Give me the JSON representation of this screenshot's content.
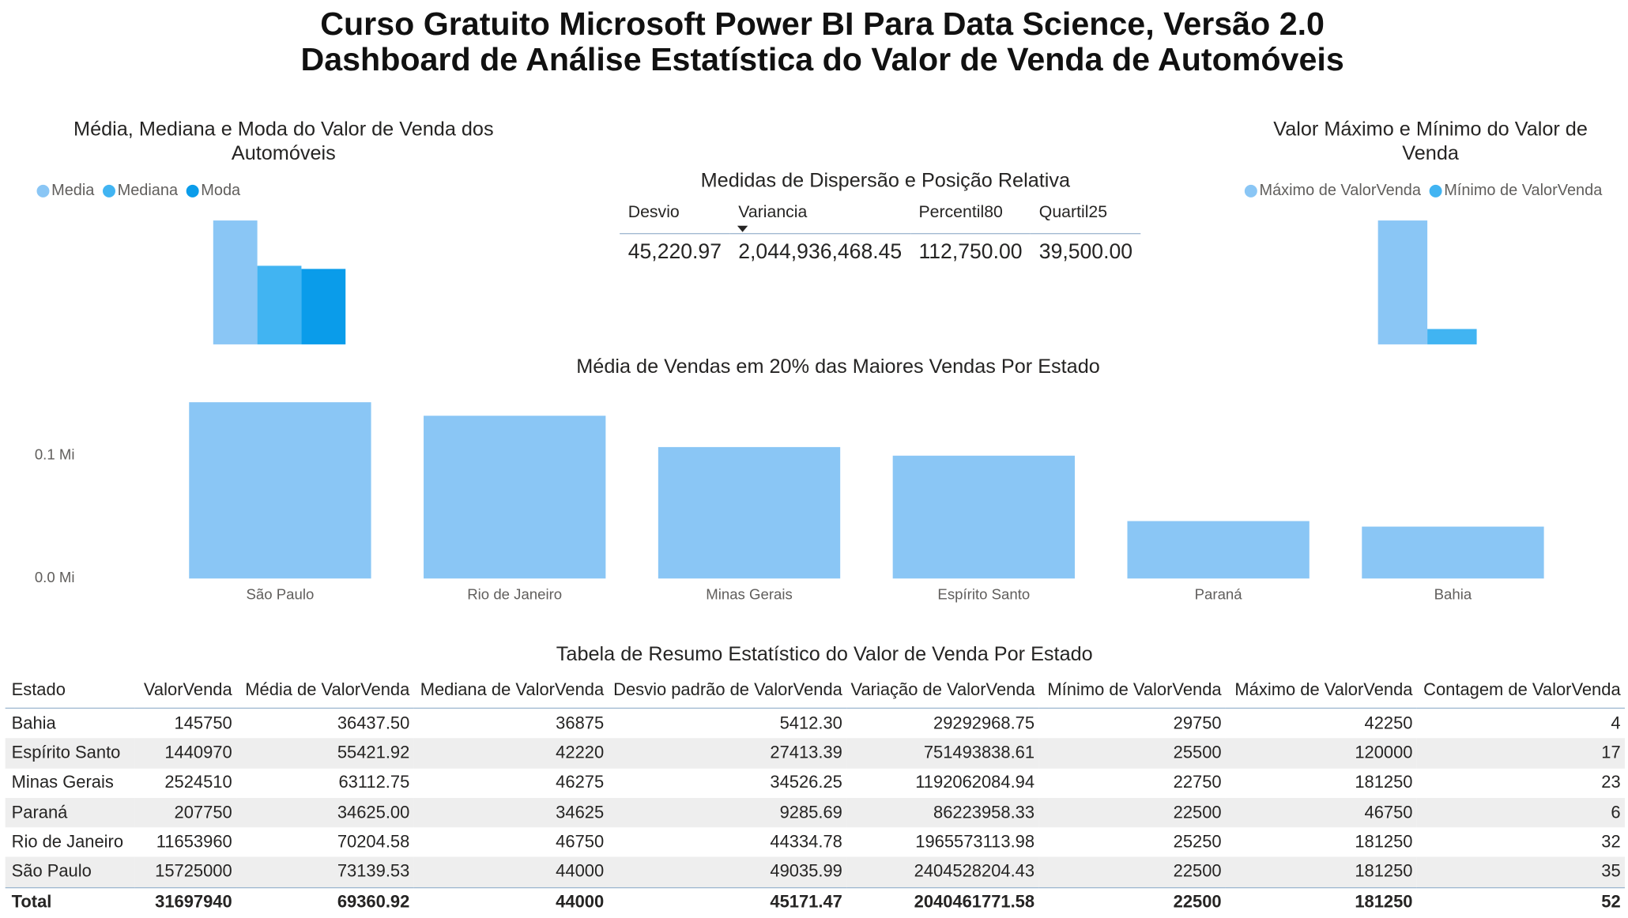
{
  "title": [
    "Curso Gratuito Microsoft Power BI Para Data Science, Versão 2.0",
    "Dashboard de Análise Estatística do Valor de Venda de Automóveis"
  ],
  "chart_data": [
    {
      "type": "bar",
      "title": "Média, Mediana e Moda do Valor de Venda dos Automóveis",
      "categories": [
        null
      ],
      "series": [
        {
          "name": "Media",
          "color": "#8AC6F5",
          "values": [
            69360.92
          ]
        },
        {
          "name": "Mediana",
          "color": "#41B4F2",
          "values": [
            44000
          ]
        },
        {
          "name": "Moda",
          "color": "#0A9CEA",
          "values": [
            42250
          ]
        }
      ]
    },
    {
      "type": "bar",
      "title": "Valor Máximo e Mínimo do Valor de Venda",
      "categories": [
        null
      ],
      "series": [
        {
          "name": "Máximo de ValorVenda",
          "color": "#8AC6F5",
          "values": [
            181250
          ]
        },
        {
          "name": "Mínimo de ValorVenda",
          "color": "#41B4F2",
          "values": [
            22500
          ]
        }
      ]
    },
    {
      "type": "bar",
      "title": "Média de Vendas em 20% das Maiores Vendas Por Estado",
      "categories": [
        "São Paulo",
        "Rio de Janeiro",
        "Minas Gerais",
        "Espírito Santo",
        "Paraná",
        "Bahia"
      ],
      "values": [
        143500,
        132500,
        107000,
        100000,
        46750,
        42250
      ],
      "color": "#8AC6F5",
      "ylim": [
        0,
        150000
      ],
      "yticks": [
        {
          "value": 0,
          "label": "0.0 Mi"
        },
        {
          "value": 100000,
          "label": "0.1 Mi"
        }
      ],
      "grid": false
    }
  ],
  "measures": {
    "title": "Medidas de Dispersão e Posição Relativa",
    "headers": [
      "Desvio",
      "Variancia",
      "Percentil80",
      "Quartil25"
    ],
    "values": [
      "45,220.97",
      "2,044,936,468.45",
      "112,750.00",
      "39,500.00"
    ]
  },
  "summary_table": {
    "title": "Tabela de Resumo Estatístico do Valor de Venda Por Estado",
    "headers": [
      "Estado",
      "ValorVenda",
      "Média de ValorVenda",
      "Mediana de ValorVenda",
      "Desvio padrão de ValorVenda",
      "Variação de ValorVenda",
      "Mínimo de ValorVenda",
      "Máximo de ValorVenda",
      "Contagem de ValorVenda"
    ],
    "rows": [
      [
        "Bahia",
        "145750",
        "36437.50",
        "36875",
        "5412.30",
        "29292968.75",
        "29750",
        "42250",
        "4"
      ],
      [
        "Espírito Santo",
        "1440970",
        "55421.92",
        "42220",
        "27413.39",
        "751493838.61",
        "25500",
        "120000",
        "17"
      ],
      [
        "Minas Gerais",
        "2524510",
        "63112.75",
        "46275",
        "34526.25",
        "1192062084.94",
        "22750",
        "181250",
        "23"
      ],
      [
        "Paraná",
        "207750",
        "34625.00",
        "34625",
        "9285.69",
        "86223958.33",
        "22500",
        "46750",
        "6"
      ],
      [
        "Rio de Janeiro",
        "11653960",
        "70204.58",
        "46750",
        "44334.78",
        "1965573113.98",
        "25250",
        "181250",
        "32"
      ],
      [
        "São Paulo",
        "15725000",
        "73139.53",
        "44000",
        "49035.99",
        "2404528204.43",
        "22500",
        "181250",
        "35"
      ]
    ],
    "total": [
      "Total",
      "31697940",
      "69360.92",
      "44000",
      "45171.47",
      "2040461771.58",
      "22500",
      "181250",
      "52"
    ]
  }
}
